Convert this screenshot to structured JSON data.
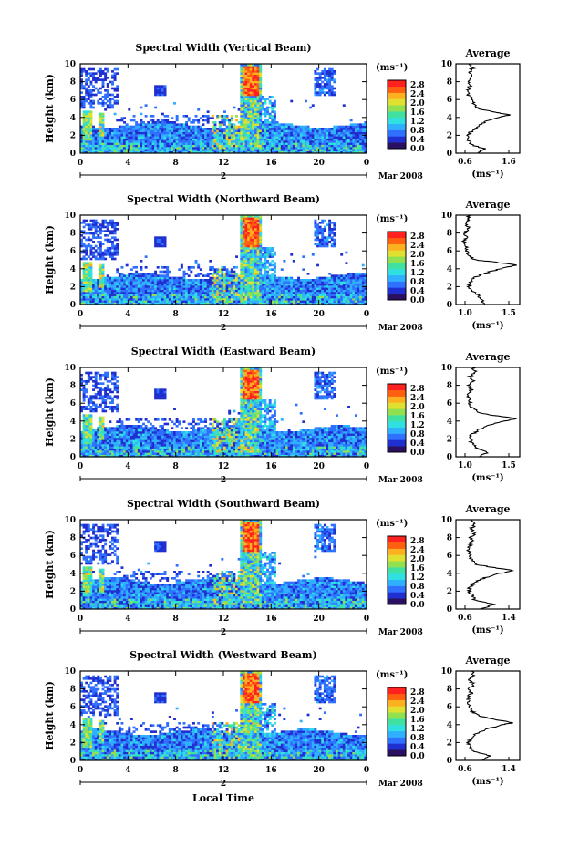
{
  "chart_data": {
    "type": "heatmap",
    "common": {
      "date_label": "Mar 2008",
      "day_label": "2",
      "x_ticks": [
        "0",
        "4",
        "8",
        "12",
        "16",
        "20",
        "0"
      ],
      "x_label": "Local Time",
      "y_label": "Height (km)",
      "y_ticks": [
        "0",
        "2",
        "4",
        "6",
        "8",
        "10"
      ],
      "colorbar_unit": "(ms⁻¹)",
      "colorbar_ticks": [
        "0.0",
        "0.4",
        "0.8",
        "1.2",
        "1.6",
        "2.0",
        "2.4",
        "2.8"
      ],
      "colorbar_range": [
        0.0,
        3.0
      ],
      "colorscale": [
        "#2a1060",
        "#1f2fd0",
        "#2f70ff",
        "#2fb0ff",
        "#30e0e0",
        "#40e0a0",
        "#90e050",
        "#e0e030",
        "#ffb020",
        "#ff6010",
        "#ff2020"
      ],
      "profile_title": "Average",
      "profile_unit": "(ms⁻¹)",
      "x_range_hours": [
        0,
        24
      ],
      "y_range_km": [
        0,
        10
      ]
    },
    "panels": [
      {
        "title": "Spectral Width (Vertical Beam)",
        "profile_xticks": [
          "0.6",
          "1.6"
        ],
        "profile_xlim": [
          0.6,
          1.6
        ],
        "profile": [
          [
            0,
            0.95
          ],
          [
            0.5,
            1.05
          ],
          [
            1,
            0.82
          ],
          [
            1.5,
            0.8
          ],
          [
            2,
            0.78
          ],
          [
            2.5,
            0.85
          ],
          [
            3,
            0.95
          ],
          [
            3.5,
            1.05
          ],
          [
            4,
            1.25
          ],
          [
            4.3,
            1.45
          ],
          [
            4.6,
            1.2
          ],
          [
            5,
            0.95
          ],
          [
            5.5,
            0.88
          ],
          [
            6,
            0.86
          ],
          [
            6.5,
            0.8
          ],
          [
            7,
            0.78
          ],
          [
            7.5,
            0.82
          ],
          [
            8,
            0.8
          ],
          [
            8.5,
            0.84
          ],
          [
            9,
            0.8
          ],
          [
            9.5,
            0.86
          ],
          [
            10,
            0.82
          ]
        ]
      },
      {
        "title": "Spectral Width (Northward Beam)",
        "profile_xticks": [
          "1.0",
          "1.5"
        ],
        "profile_xlim": [
          0.6,
          1.6
        ],
        "profile": [
          [
            0,
            1.05
          ],
          [
            0.5,
            1.0
          ],
          [
            1,
            0.95
          ],
          [
            1.5,
            0.85
          ],
          [
            2,
            0.8
          ],
          [
            2.5,
            0.82
          ],
          [
            3,
            0.88
          ],
          [
            3.5,
            1.05
          ],
          [
            4,
            1.3
          ],
          [
            4.4,
            1.55
          ],
          [
            4.8,
            1.15
          ],
          [
            5,
            0.9
          ],
          [
            5.5,
            0.8
          ],
          [
            6,
            0.78
          ],
          [
            6.5,
            0.75
          ],
          [
            7,
            0.72
          ],
          [
            7.5,
            0.78
          ],
          [
            8,
            0.74
          ],
          [
            8.5,
            0.8
          ],
          [
            9,
            0.76
          ],
          [
            9.5,
            0.8
          ],
          [
            10,
            0.78
          ]
        ]
      },
      {
        "title": "Spectral Width (Eastward Beam)",
        "profile_xticks": [
          "1.0",
          "1.5"
        ],
        "profile_xlim": [
          0.6,
          1.6
        ],
        "profile": [
          [
            0,
            0.95
          ],
          [
            0.5,
            1.1
          ],
          [
            1,
            0.92
          ],
          [
            1.5,
            0.85
          ],
          [
            2,
            0.82
          ],
          [
            2.5,
            0.85
          ],
          [
            3,
            0.95
          ],
          [
            3.5,
            1.1
          ],
          [
            4,
            1.35
          ],
          [
            4.3,
            1.55
          ],
          [
            4.7,
            1.1
          ],
          [
            5,
            0.95
          ],
          [
            5.5,
            0.85
          ],
          [
            6,
            0.82
          ],
          [
            6.5,
            0.8
          ],
          [
            7,
            0.78
          ],
          [
            7.5,
            0.85
          ],
          [
            8,
            0.8
          ],
          [
            8.5,
            0.88
          ],
          [
            9,
            0.82
          ],
          [
            9.5,
            0.9
          ],
          [
            10,
            0.86
          ]
        ]
      },
      {
        "title": "Spectral Width (Southward Beam)",
        "profile_xticks": [
          "0.6",
          "1.4"
        ],
        "profile_xlim": [
          0.6,
          1.6
        ],
        "profile": [
          [
            0,
            1.0
          ],
          [
            0.5,
            1.2
          ],
          [
            1,
            0.9
          ],
          [
            1.5,
            0.85
          ],
          [
            2,
            0.8
          ],
          [
            2.5,
            0.82
          ],
          [
            3,
            0.9
          ],
          [
            3.5,
            1.05
          ],
          [
            4,
            1.3
          ],
          [
            4.3,
            1.5
          ],
          [
            4.7,
            1.15
          ],
          [
            5,
            0.92
          ],
          [
            5.5,
            0.84
          ],
          [
            6,
            0.82
          ],
          [
            6.5,
            0.8
          ],
          [
            7,
            0.8
          ],
          [
            7.5,
            0.86
          ],
          [
            8,
            0.82
          ],
          [
            8.5,
            0.9
          ],
          [
            9,
            0.84
          ],
          [
            9.5,
            0.9
          ],
          [
            10,
            0.86
          ]
        ]
      },
      {
        "title": "Spectral Width (Westward Beam)",
        "profile_xticks": [
          "0.6",
          "1.4"
        ],
        "profile_xlim": [
          0.6,
          1.6
        ],
        "profile": [
          [
            0,
            1.0
          ],
          [
            0.5,
            1.15
          ],
          [
            1,
            0.88
          ],
          [
            1.5,
            0.82
          ],
          [
            2,
            0.8
          ],
          [
            2.5,
            0.84
          ],
          [
            3,
            0.92
          ],
          [
            3.5,
            1.08
          ],
          [
            4,
            1.32
          ],
          [
            4.2,
            1.5
          ],
          [
            4.6,
            1.2
          ],
          [
            5,
            0.95
          ],
          [
            5.5,
            0.85
          ],
          [
            6,
            0.82
          ],
          [
            6.5,
            0.8
          ],
          [
            7,
            0.78
          ],
          [
            7.5,
            0.84
          ],
          [
            8,
            0.8
          ],
          [
            8.5,
            0.88
          ],
          [
            9,
            0.82
          ],
          [
            9.5,
            0.88
          ],
          [
            10,
            0.84
          ]
        ]
      }
    ]
  }
}
